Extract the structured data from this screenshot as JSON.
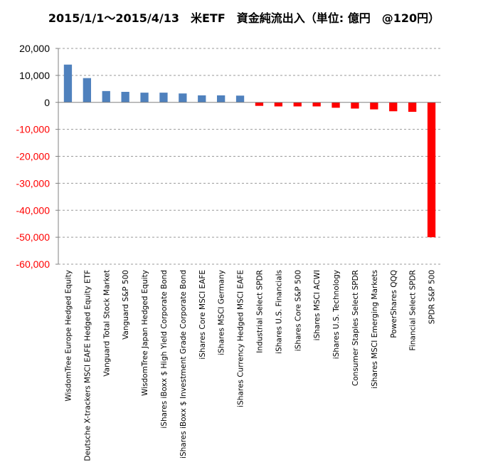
{
  "chart_data": {
    "type": "bar",
    "title": "2015/1/1～2015/4/13　米ETF　資金純流出入（単位: 億円　@120円）",
    "categories": [
      "WisdomTree Europe Hedged Equity",
      "Deutsche X-trackers MSCI EAFE Hedged Equity ETF",
      "Vanguard Total Stock Market",
      "Vanguard S&P 500",
      "WisdomTree Japan Hedged Equity",
      "iShares iBoxx $ High Yield Corporate Bond",
      "iShares iBoxx $ Investment Grade Corporate Bond",
      "iShares Core MSCI EAFE",
      "iShares MSCI Germany",
      "iShares Currency Hedged MSCI EAFE",
      "Industrial Select SPDR",
      "iShares U.S. Financials",
      "iShares Core S&P 500",
      "iShares MSCI ACWI",
      "iShares U.S. Technology",
      "Consumer Staples Select SPDR",
      "iShares MSCI Emerging Markets",
      "PowerShares QQQ",
      "Financial Select SPDR",
      "SPDR S&P 500"
    ],
    "values": [
      14000,
      9000,
      4200,
      3900,
      3600,
      3600,
      3300,
      2600,
      2600,
      2500,
      -1300,
      -1500,
      -1500,
      -1500,
      -2000,
      -2300,
      -2600,
      -3300,
      -3500,
      -50000
    ],
    "ylim": [
      -60000,
      20000
    ],
    "yticks": [
      20000,
      10000,
      0,
      -10000,
      -20000,
      -30000,
      -40000,
      -50000,
      -60000
    ],
    "ytick_labels": [
      "20,000",
      "10,000",
      "0",
      "-10,000",
      "-20,000",
      "-30,000",
      "-40,000",
      "-50,000",
      "-60,000"
    ],
    "grid": true,
    "colors": {
      "positive": "#4f81bd",
      "negative": "#ff0000",
      "positive_label": "#000000",
      "negative_label": "#ff0000",
      "grid": "#9a9a9a",
      "axis": "#808080"
    }
  }
}
